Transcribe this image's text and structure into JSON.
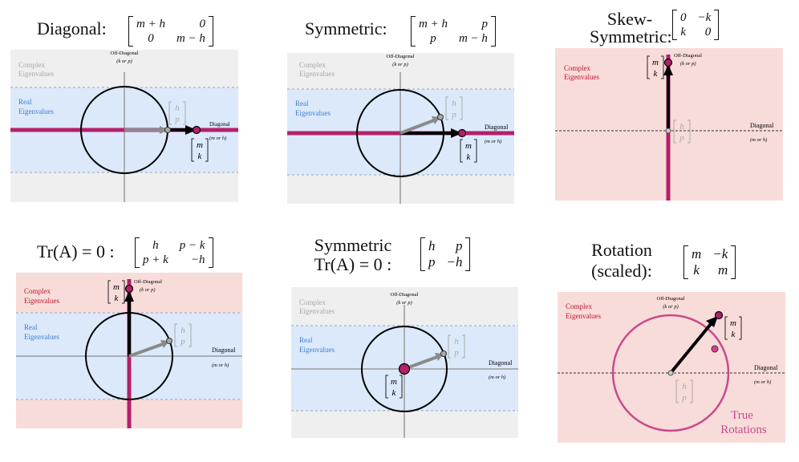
{
  "panels": [
    {
      "id": "diagonal",
      "title": "Diagonal:",
      "matrix": [
        "m + h",
        "0",
        "0",
        "m − h"
      ],
      "region_labels": [
        "Complex",
        "Eigenvalues",
        "Real",
        "Eigenvalues"
      ],
      "axis_off": [
        "Off-Diagonal",
        "(k or p)"
      ],
      "axis_diag": [
        "Diagonal",
        "(m or h)"
      ],
      "vec_hp": [
        "h",
        "p"
      ],
      "vec_mk": [
        "m",
        "k"
      ]
    },
    {
      "id": "symmetric",
      "title": "Symmetric:",
      "matrix": [
        "m + h",
        "p",
        "p",
        "m − h"
      ],
      "region_labels": [
        "Complex",
        "Eigenvalues",
        "Real",
        "Eigenvalues"
      ],
      "axis_off": [
        "Off-Diagonal",
        "(k or p)"
      ],
      "axis_diag": [
        "Diagonal",
        "(m or h)"
      ],
      "vec_hp": [
        "h",
        "p"
      ],
      "vec_mk": [
        "m",
        "k"
      ]
    },
    {
      "id": "skew",
      "title": "Skew-",
      "title2": "Symmetric:",
      "matrix": [
        "0",
        "−k",
        "k",
        "0"
      ],
      "region_labels": [
        "Complex",
        "Eigenvalues"
      ],
      "axis_off": [
        "Off-Diagonal",
        "(k or p)"
      ],
      "axis_diag": [
        "Diagonal",
        "(m or h)"
      ],
      "vec_hp": [
        "h",
        "p"
      ],
      "vec_mk": [
        "m",
        "k"
      ]
    },
    {
      "id": "trace0",
      "title": "Tr(A) = 0 :",
      "matrix": [
        "h",
        "p − k",
        "p + k",
        "−h"
      ],
      "region_labels": [
        "Complex",
        "Eigenvalues",
        "Real",
        "Eigenvalues"
      ],
      "axis_off": [
        "Off-Diagonal",
        "(k or p)"
      ],
      "axis_diag": [
        "Diagonal",
        "(m or h)"
      ],
      "vec_hp": [
        "h",
        "p"
      ],
      "vec_mk": [
        "m",
        "k"
      ]
    },
    {
      "id": "symtrace0",
      "title": "Symmetric",
      "title2": "Tr(A) = 0 :",
      "matrix": [
        "h",
        "p",
        "p",
        "−h"
      ],
      "region_labels": [
        "Complex",
        "Eigenvalues",
        "Real",
        "Eigenvalues"
      ],
      "axis_off": [
        "Off-Diagonal",
        "(k or p)"
      ],
      "axis_diag": [
        "Diagonal",
        "(m or h)"
      ],
      "vec_hp": [
        "h",
        "p"
      ],
      "vec_mk": [
        "m",
        "k"
      ]
    },
    {
      "id": "rotation",
      "title": "Rotation",
      "title2": "(scaled):",
      "matrix": [
        "m",
        "−k",
        "k",
        "m"
      ],
      "region_labels": [
        "Complex",
        "Eigenvalues"
      ],
      "axis_off": [
        "Off-Diagonal",
        "(k or p)"
      ],
      "axis_diag": [
        "Diagonal",
        "(m or h)"
      ],
      "vec_hp": [
        "h",
        "p"
      ],
      "vec_mk": [
        "m",
        "k"
      ],
      "true_rotations": [
        "True",
        "Rotations"
      ]
    }
  ],
  "colors": {
    "complex_gray": "#efefef",
    "complex_pink": "#f8dcda",
    "real_blue": "#dbe9fb",
    "magenta": "#b4206a",
    "rotation_circle": "#c94a8a",
    "gray_arrow": "#8a8a8a",
    "axis_gray": "#9a9a9a",
    "complex_label_gray": "#a8a8a8",
    "complex_label_red": "#c0142c",
    "real_label_blue": "#3f7fd0"
  }
}
